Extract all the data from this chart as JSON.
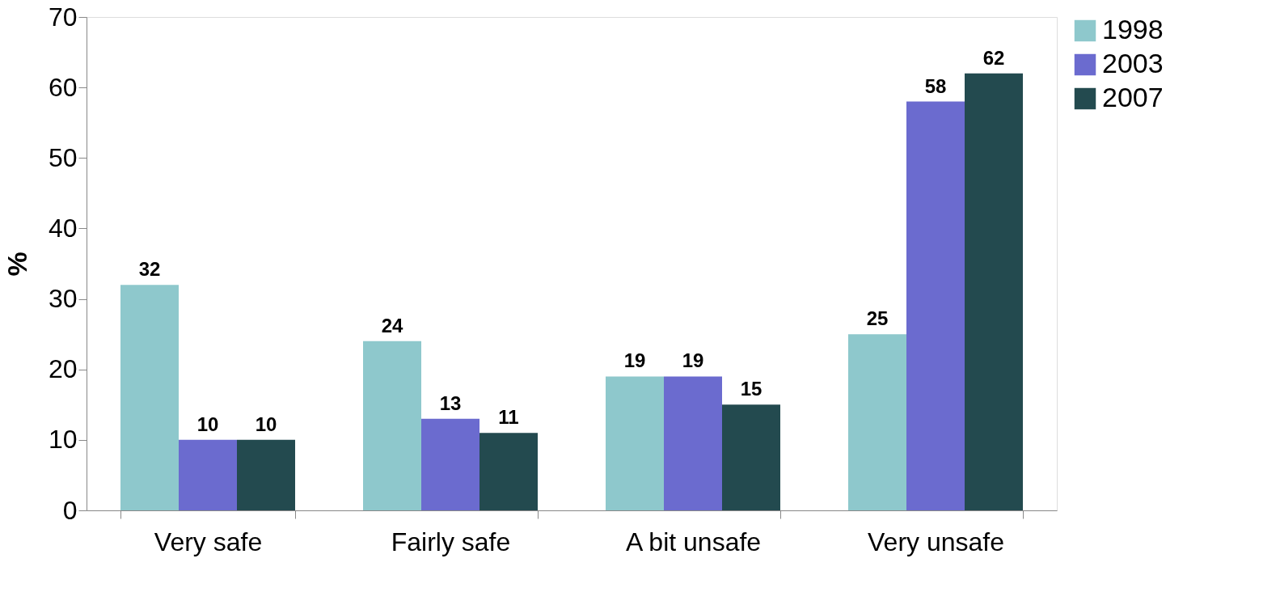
{
  "chart_data": {
    "type": "bar",
    "ylabel": "%",
    "categories": [
      "Very safe",
      "Fairly safe",
      "A bit unsafe",
      "Very unsafe"
    ],
    "series": [
      {
        "name": "1998",
        "color": "#8ec8cc",
        "values": [
          32,
          24,
          19,
          25
        ]
      },
      {
        "name": "2003",
        "color": "#6b6bcf",
        "values": [
          10,
          13,
          19,
          58
        ]
      },
      {
        "name": "2007",
        "color": "#234a4f",
        "values": [
          10,
          11,
          15,
          62
        ]
      }
    ],
    "ylim": [
      0,
      70
    ],
    "yticks": [
      0,
      10,
      20,
      30,
      40,
      50,
      60,
      70
    ],
    "data_labels": true,
    "legend": "right",
    "grid": false
  }
}
